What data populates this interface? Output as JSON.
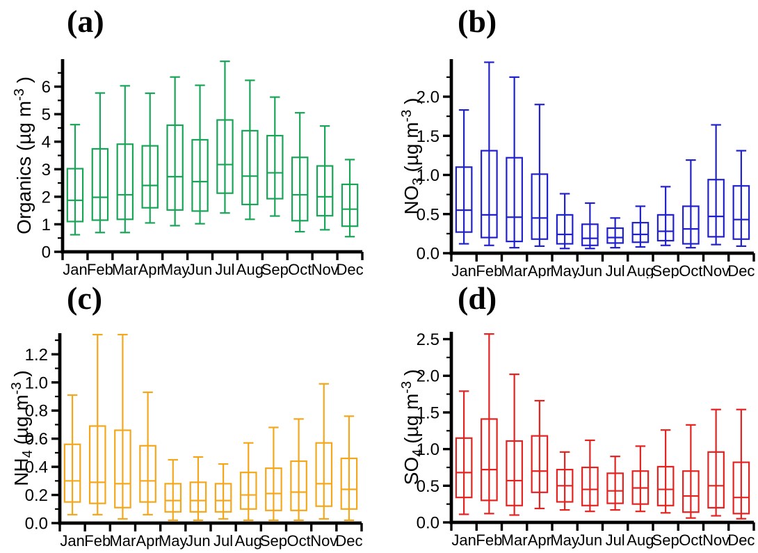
{
  "figure": {
    "background": "#ffffff",
    "axis_color": "#000000"
  },
  "months": [
    "Jan",
    "Feb",
    "Mar",
    "Apr",
    "May",
    "Jun",
    "Jul",
    "Aug",
    "Sep",
    "Oct",
    "Nov",
    "Dec"
  ],
  "chart_data": [
    {
      "type": "box",
      "panel_label": "(a)",
      "ylabel": "Organics (µg m⁻³)",
      "ylabel_parts": [
        {
          "t": "Organics (µg m"
        },
        {
          "t": "-3",
          "sup": true
        },
        {
          "t": " )"
        }
      ],
      "color": "#18A558",
      "categories": [
        "Jan",
        "Feb",
        "Mar",
        "Apr",
        "May",
        "Jun",
        "Jul",
        "Aug",
        "Sep",
        "Oct",
        "Nov",
        "Dec"
      ],
      "ylim": [
        0,
        7.0
      ],
      "yticks": [
        0,
        1,
        2,
        3,
        4,
        5,
        6
      ],
      "ytick_labels": [
        "0",
        "1",
        "2",
        "3",
        "4",
        "5",
        "6"
      ],
      "yminor_step": 0.5,
      "grid": false,
      "series_stats": [
        {
          "month": "Jan",
          "whisker_low": 0.62,
          "q1": 1.1,
          "median": 1.87,
          "q3": 3.02,
          "whisker_high": 4.62
        },
        {
          "month": "Feb",
          "whisker_low": 0.7,
          "q1": 1.15,
          "median": 1.98,
          "q3": 3.74,
          "whisker_high": 5.77
        },
        {
          "month": "Mar",
          "whisker_low": 0.7,
          "q1": 1.18,
          "median": 2.07,
          "q3": 3.91,
          "whisker_high": 6.03
        },
        {
          "month": "Apr",
          "whisker_low": 1.05,
          "q1": 1.6,
          "median": 2.41,
          "q3": 3.85,
          "whisker_high": 5.76
        },
        {
          "month": "May",
          "whisker_low": 0.95,
          "q1": 1.52,
          "median": 2.73,
          "q3": 4.6,
          "whisker_high": 6.35
        },
        {
          "month": "Jun",
          "whisker_low": 1.02,
          "q1": 1.48,
          "median": 2.55,
          "q3": 4.07,
          "whisker_high": 6.05
        },
        {
          "month": "Jul",
          "whisker_low": 1.41,
          "q1": 2.13,
          "median": 3.17,
          "q3": 4.79,
          "whisker_high": 6.92
        },
        {
          "month": "Aug",
          "whisker_low": 1.18,
          "q1": 1.72,
          "median": 2.75,
          "q3": 4.4,
          "whisker_high": 6.23
        },
        {
          "month": "Sep",
          "whisker_low": 1.3,
          "q1": 1.93,
          "median": 2.87,
          "q3": 4.22,
          "whisker_high": 5.62
        },
        {
          "month": "Oct",
          "whisker_low": 0.73,
          "q1": 1.13,
          "median": 2.07,
          "q3": 3.43,
          "whisker_high": 5.05
        },
        {
          "month": "Nov",
          "whisker_low": 0.8,
          "q1": 1.31,
          "median": 2.0,
          "q3": 3.12,
          "whisker_high": 4.57
        },
        {
          "month": "Dec",
          "whisker_low": 0.55,
          "q1": 0.93,
          "median": 1.55,
          "q3": 2.45,
          "whisker_high": 3.35
        }
      ]
    },
    {
      "type": "box",
      "panel_label": "(b)",
      "ylabel": "NO₃ (µg m⁻³)",
      "ylabel_parts": [
        {
          "t": "NO"
        },
        {
          "t": "3",
          "sub": true
        },
        {
          "t": " (µg m"
        },
        {
          "t": "-3",
          "sup": true
        },
        {
          "t": " )"
        }
      ],
      "color": "#2121CC",
      "categories": [
        "Jan",
        "Feb",
        "Mar",
        "Apr",
        "May",
        "Jun",
        "Jul",
        "Aug",
        "Sep",
        "Oct",
        "Nov",
        "Dec"
      ],
      "ylim": [
        0,
        2.48
      ],
      "yticks": [
        0.0,
        0.5,
        1.0,
        1.5,
        2.0
      ],
      "ytick_labels": [
        "0.0",
        "0.5",
        "1.0",
        "1.5",
        "2.0"
      ],
      "yminor_step": 0.25,
      "grid": false,
      "series_stats": [
        {
          "month": "Jan",
          "whisker_low": 0.12,
          "q1": 0.27,
          "median": 0.55,
          "q3": 1.1,
          "whisker_high": 1.83
        },
        {
          "month": "Feb",
          "whisker_low": 0.1,
          "q1": 0.2,
          "median": 0.49,
          "q3": 1.31,
          "whisker_high": 2.44
        },
        {
          "month": "Mar",
          "whisker_low": 0.07,
          "q1": 0.15,
          "median": 0.46,
          "q3": 1.22,
          "whisker_high": 2.25
        },
        {
          "month": "Apr",
          "whisker_low": 0.09,
          "q1": 0.18,
          "median": 0.45,
          "q3": 1.01,
          "whisker_high": 1.9
        },
        {
          "month": "May",
          "whisker_low": 0.06,
          "q1": 0.12,
          "median": 0.24,
          "q3": 0.49,
          "whisker_high": 0.76
        },
        {
          "month": "Jun",
          "whisker_low": 0.06,
          "q1": 0.1,
          "median": 0.19,
          "q3": 0.37,
          "whisker_high": 0.64
        },
        {
          "month": "Jul",
          "whisker_low": 0.07,
          "q1": 0.13,
          "median": 0.2,
          "q3": 0.32,
          "whisker_high": 0.45
        },
        {
          "month": "Aug",
          "whisker_low": 0.08,
          "q1": 0.14,
          "median": 0.24,
          "q3": 0.39,
          "whisker_high": 0.6
        },
        {
          "month": "Sep",
          "whisker_low": 0.1,
          "q1": 0.16,
          "median": 0.28,
          "q3": 0.49,
          "whisker_high": 0.85
        },
        {
          "month": "Oct",
          "whisker_low": 0.07,
          "q1": 0.12,
          "median": 0.31,
          "q3": 0.6,
          "whisker_high": 1.19
        },
        {
          "month": "Nov",
          "whisker_low": 0.11,
          "q1": 0.21,
          "median": 0.47,
          "q3": 0.94,
          "whisker_high": 1.64
        },
        {
          "month": "Dec",
          "whisker_low": 0.09,
          "q1": 0.18,
          "median": 0.43,
          "q3": 0.86,
          "whisker_high": 1.31
        }
      ]
    },
    {
      "type": "box",
      "panel_label": "(c)",
      "ylabel": "NH₄ (µg m⁻³)",
      "ylabel_parts": [
        {
          "t": "NH"
        },
        {
          "t": "4",
          "sub": true
        },
        {
          "t": " (µg m"
        },
        {
          "t": "-3",
          "sup": true
        },
        {
          "t": " )"
        }
      ],
      "color": "#F5A71C",
      "categories": [
        "Jan",
        "Feb",
        "Mar",
        "Apr",
        "May",
        "Jun",
        "Jul",
        "Aug",
        "Sep",
        "Oct",
        "Nov",
        "Dec"
      ],
      "ylim": [
        0,
        1.35
      ],
      "yticks": [
        0.0,
        0.2,
        0.4,
        0.6,
        0.8,
        1.0,
        1.2
      ],
      "ytick_labels": [
        "0.0",
        "0.2",
        "0.4",
        "0.6",
        "0.8",
        "1.0",
        "1.2"
      ],
      "yminor_step": 0.1,
      "grid": false,
      "series_stats": [
        {
          "month": "Jan",
          "whisker_low": 0.06,
          "q1": 0.15,
          "median": 0.3,
          "q3": 0.56,
          "whisker_high": 0.91
        },
        {
          "month": "Feb",
          "whisker_low": 0.06,
          "q1": 0.14,
          "median": 0.29,
          "q3": 0.69,
          "whisker_high": 1.34
        },
        {
          "month": "Mar",
          "whisker_low": 0.03,
          "q1": 0.11,
          "median": 0.28,
          "q3": 0.66,
          "whisker_high": 1.34
        },
        {
          "month": "Apr",
          "whisker_low": 0.06,
          "q1": 0.15,
          "median": 0.3,
          "q3": 0.55,
          "whisker_high": 0.93
        },
        {
          "month": "May",
          "whisker_low": 0.02,
          "q1": 0.08,
          "median": 0.16,
          "q3": 0.28,
          "whisker_high": 0.45
        },
        {
          "month": "Jun",
          "whisker_low": 0.02,
          "q1": 0.08,
          "median": 0.16,
          "q3": 0.29,
          "whisker_high": 0.47
        },
        {
          "month": "Jul",
          "whisker_low": 0.03,
          "q1": 0.08,
          "median": 0.16,
          "q3": 0.28,
          "whisker_high": 0.42
        },
        {
          "month": "Aug",
          "whisker_low": 0.02,
          "q1": 0.1,
          "median": 0.2,
          "q3": 0.36,
          "whisker_high": 0.57
        },
        {
          "month": "Sep",
          "whisker_low": 0.02,
          "q1": 0.09,
          "median": 0.21,
          "q3": 0.39,
          "whisker_high": 0.68
        },
        {
          "month": "Oct",
          "whisker_low": 0.02,
          "q1": 0.09,
          "median": 0.22,
          "q3": 0.44,
          "whisker_high": 0.74
        },
        {
          "month": "Nov",
          "whisker_low": 0.03,
          "q1": 0.12,
          "median": 0.28,
          "q3": 0.57,
          "whisker_high": 0.99
        },
        {
          "month": "Dec",
          "whisker_low": 0.02,
          "q1": 0.1,
          "median": 0.24,
          "q3": 0.46,
          "whisker_high": 0.76
        }
      ]
    },
    {
      "type": "box",
      "panel_label": "(d)",
      "ylabel": "SO₄ (µg m⁻³)",
      "ylabel_parts": [
        {
          "t": "SO"
        },
        {
          "t": "4",
          "sub": true
        },
        {
          "t": " (µg m"
        },
        {
          "t": "-3",
          "sup": true
        },
        {
          "t": " )"
        }
      ],
      "color": "#E42320",
      "categories": [
        "Jan",
        "Feb",
        "Mar",
        "Apr",
        "May",
        "Jun",
        "Jul",
        "Aug",
        "Sep",
        "Oct",
        "Nov",
        "Dec"
      ],
      "ylim": [
        0,
        2.6
      ],
      "yticks": [
        0.0,
        0.5,
        1.0,
        1.5,
        2.0,
        2.5
      ],
      "ytick_labels": [
        "0.0",
        "0.5",
        "1.0",
        "1.5",
        "2.0",
        "2.5"
      ],
      "yminor_step": 0.25,
      "grid": false,
      "series_stats": [
        {
          "month": "Jan",
          "whisker_low": 0.11,
          "q1": 0.34,
          "median": 0.68,
          "q3": 1.15,
          "whisker_high": 1.79
        },
        {
          "month": "Feb",
          "whisker_low": 0.12,
          "q1": 0.3,
          "median": 0.72,
          "q3": 1.41,
          "whisker_high": 2.57
        },
        {
          "month": "Mar",
          "whisker_low": 0.1,
          "q1": 0.23,
          "median": 0.57,
          "q3": 1.11,
          "whisker_high": 2.02
        },
        {
          "month": "Apr",
          "whisker_low": 0.19,
          "q1": 0.41,
          "median": 0.7,
          "q3": 1.18,
          "whisker_high": 1.66
        },
        {
          "month": "May",
          "whisker_low": 0.17,
          "q1": 0.28,
          "median": 0.5,
          "q3": 0.72,
          "whisker_high": 0.96
        },
        {
          "month": "Jun",
          "whisker_low": 0.15,
          "q1": 0.23,
          "median": 0.45,
          "q3": 0.75,
          "whisker_high": 1.12
        },
        {
          "month": "Jul",
          "whisker_low": 0.17,
          "q1": 0.26,
          "median": 0.43,
          "q3": 0.67,
          "whisker_high": 0.9
        },
        {
          "month": "Aug",
          "whisker_low": 0.15,
          "q1": 0.25,
          "median": 0.47,
          "q3": 0.7,
          "whisker_high": 1.04
        },
        {
          "month": "Sep",
          "whisker_low": 0.13,
          "q1": 0.23,
          "median": 0.45,
          "q3": 0.76,
          "whisker_high": 1.26
        },
        {
          "month": "Oct",
          "whisker_low": 0.06,
          "q1": 0.14,
          "median": 0.36,
          "q3": 0.7,
          "whisker_high": 1.33
        },
        {
          "month": "Nov",
          "whisker_low": 0.09,
          "q1": 0.2,
          "median": 0.5,
          "q3": 0.96,
          "whisker_high": 1.54
        },
        {
          "month": "Dec",
          "whisker_low": 0.05,
          "q1": 0.12,
          "median": 0.34,
          "q3": 0.82,
          "whisker_high": 1.54
        }
      ]
    }
  ]
}
